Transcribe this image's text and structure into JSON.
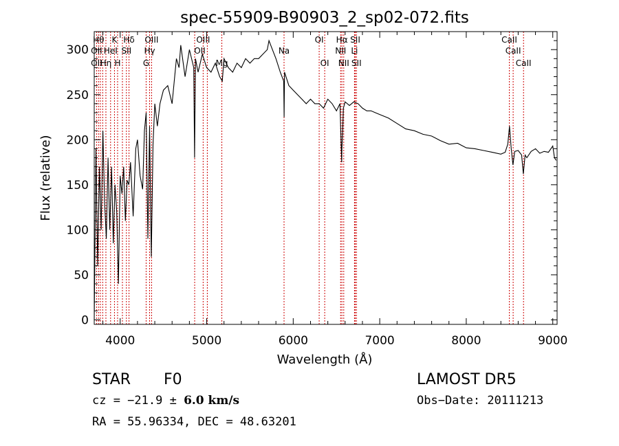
{
  "chart_data": {
    "type": "line",
    "title": "spec-55909-B90903_2_sp02-072.fits",
    "xlabel": "Wavelength (Å)",
    "ylabel": "Flux (relative)",
    "xlim": [
      3700,
      9050
    ],
    "ylim": [
      -5,
      320
    ],
    "xticks": [
      4000,
      5000,
      6000,
      7000,
      8000,
      9000
    ],
    "yticks": [
      0,
      50,
      100,
      150,
      200,
      250,
      300
    ],
    "grid": false,
    "series": [
      {
        "x": [
          3700,
          3720,
          3740,
          3760,
          3780,
          3800,
          3820,
          3840,
          3860,
          3880,
          3900,
          3920,
          3940,
          3960,
          3980,
          4000,
          4020,
          4040,
          4060,
          4080,
          4100,
          4120,
          4150,
          4180,
          4200,
          4230,
          4260,
          4280,
          4300,
          4320,
          4340,
          4360,
          4380,
          4400,
          4430,
          4460,
          4500,
          4550,
          4600,
          4650,
          4680,
          4700,
          4750,
          4800,
          4850,
          4860,
          4870,
          4900,
          4950,
          5000,
          5050,
          5100,
          5150,
          5180,
          5200,
          5250,
          5300,
          5350,
          5400,
          5450,
          5500,
          5550,
          5600,
          5650,
          5700,
          5720,
          5740,
          5760,
          5800,
          5850,
          5890,
          5895,
          5900,
          5950,
          6000,
          6050,
          6100,
          6150,
          6200,
          6250,
          6300,
          6350,
          6400,
          6450,
          6500,
          6540,
          6560,
          6563,
          6570,
          6580,
          6600,
          6650,
          6700,
          6750,
          6800,
          6850,
          6900,
          6950,
          7000,
          7100,
          7200,
          7300,
          7400,
          7500,
          7600,
          7700,
          7800,
          7900,
          8000,
          8100,
          8200,
          8300,
          8400,
          8450,
          8480,
          8500,
          8520,
          8540,
          8560,
          8600,
          8640,
          8660,
          8680,
          8700,
          8750,
          8800,
          8850,
          8900,
          8950,
          9000,
          9020,
          9040
        ],
        "values": [
          0,
          190,
          60,
          170,
          100,
          210,
          130,
          90,
          180,
          100,
          170,
          85,
          150,
          120,
          40,
          160,
          140,
          170,
          110,
          155,
          150,
          175,
          115,
          190,
          200,
          160,
          145,
          210,
          230,
          90,
          215,
          70,
          195,
          240,
          215,
          240,
          255,
          260,
          240,
          290,
          280,
          305,
          270,
          300,
          280,
          180,
          290,
          275,
          295,
          280,
          275,
          285,
          270,
          265,
          290,
          280,
          275,
          285,
          280,
          290,
          285,
          290,
          290,
          295,
          300,
          310,
          305,
          300,
          290,
          275,
          265,
          225,
          275,
          260,
          255,
          250,
          245,
          240,
          245,
          240,
          240,
          235,
          245,
          240,
          232,
          240,
          175,
          190,
          205,
          235,
          242,
          238,
          242,
          240,
          235,
          232,
          232,
          230,
          228,
          224,
          218,
          212,
          210,
          206,
          204,
          199,
          195,
          196,
          191,
          190,
          188,
          186,
          184,
          186,
          195,
          215,
          190,
          172,
          187,
          188,
          183,
          162,
          183,
          180,
          187,
          190,
          185,
          187,
          186,
          193,
          180,
          177
        ]
      }
    ],
    "line_labels": [
      {
        "w": 3750,
        "text": "Hθ",
        "row": 0
      },
      {
        "w": 3727,
        "text": "OII",
        "row": 1
      },
      {
        "w": 3727,
        "text": "OII",
        "row": 2
      },
      {
        "w": 3835,
        "text": "Hη",
        "row": 2
      },
      {
        "w": 3889,
        "text": "HeI",
        "row": 1
      },
      {
        "w": 3934,
        "text": "K",
        "row": 0
      },
      {
        "w": 3970,
        "text": "H",
        "row": 2
      },
      {
        "w": 4072,
        "text": "SII",
        "row": 1
      },
      {
        "w": 4102,
        "text": "Hδ",
        "row": 0
      },
      {
        "w": 4300,
        "text": "G",
        "row": 2
      },
      {
        "w": 4340,
        "text": "Hγ",
        "row": 1
      },
      {
        "w": 4363,
        "text": "OIII",
        "row": 0
      },
      {
        "w": 4959,
        "text": "OIII",
        "row": 0
      },
      {
        "w": 4920,
        "text": "OII",
        "row": 1
      },
      {
        "w": 5175,
        "text": "Mg",
        "row": 2
      },
      {
        "w": 5894,
        "text": "Na",
        "row": 1
      },
      {
        "w": 6300,
        "text": "OI",
        "row": 0
      },
      {
        "w": 6364,
        "text": "OI",
        "row": 2
      },
      {
        "w": 6563,
        "text": "Hα",
        "row": 0
      },
      {
        "w": 6548,
        "text": "NII",
        "row": 1
      },
      {
        "w": 6584,
        "text": "NII",
        "row": 2
      },
      {
        "w": 6717,
        "text": "SII",
        "row": 0
      },
      {
        "w": 6708,
        "text": "Li",
        "row": 1
      },
      {
        "w": 6731,
        "text": "SII",
        "row": 2
      },
      {
        "w": 8498,
        "text": "CaII",
        "row": 0
      },
      {
        "w": 8542,
        "text": "CaII",
        "row": 1
      },
      {
        "w": 8662,
        "text": "CaII",
        "row": 2
      }
    ],
    "line_positions": [
      3727,
      3750,
      3771,
      3798,
      3835,
      3889,
      3934,
      3970,
      4026,
      4072,
      4102,
      4300,
      4340,
      4363,
      4861,
      4959,
      5007,
      5175,
      5894,
      6300,
      6364,
      6548,
      6563,
      6584,
      6708,
      6717,
      6731,
      8498,
      8542,
      8662
    ]
  },
  "info": {
    "object_class": "STAR",
    "subclass": "F0",
    "survey": "LAMOST  DR5",
    "cz_prefix": "cz = −21.9 ± ",
    "cz_err": "6.0 km/s",
    "obs_date": "Obs−Date: 20111213",
    "radec": "RA =  55.96334, DEC =  48.63201"
  }
}
